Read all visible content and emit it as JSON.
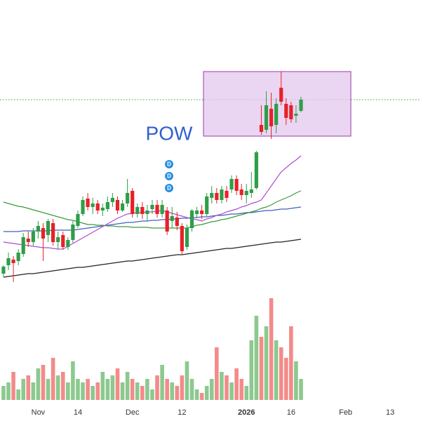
{
  "chart_data": {
    "type": "candlestick",
    "xlim": [
      -0.7,
      84.2
    ],
    "xticks": [
      {
        "value": 7,
        "label": "Nov"
      },
      {
        "value": 15,
        "label": "14"
      },
      {
        "value": 26,
        "label": "Dec"
      },
      {
        "value": 36,
        "label": "12"
      },
      {
        "value": 49,
        "label": "2026"
      },
      {
        "value": 58,
        "label": "16"
      },
      {
        "value": 69,
        "label": "Feb"
      },
      {
        "value": 78,
        "label": "13"
      }
    ],
    "ylim": [
      0,
      570
    ],
    "y2lim": [
      0,
      150
    ],
    "up_color": "#2e9e48",
    "down_color": "#e8202a",
    "open": [
      180,
      192,
      200,
      198,
      208,
      230,
      225,
      240,
      245,
      235,
      252,
      225,
      235,
      218,
      228,
      248,
      265,
      287,
      275,
      280,
      270,
      272,
      282,
      285,
      270,
      280,
      298,
      265,
      275,
      265,
      272,
      278,
      265,
      270,
      255,
      260,
      248,
      218,
      245,
      265,
      270,
      265,
      288,
      295,
      285,
      298,
      300,
      315,
      300,
      292,
      295,
      302,
      392,
      385,
      415,
      392,
      445,
      422,
      420,
      405,
      412
    ],
    "high": [
      192,
      210,
      205,
      215,
      238,
      240,
      245,
      255,
      252,
      258,
      258,
      240,
      240,
      232,
      255,
      270,
      290,
      295,
      288,
      285,
      280,
      290,
      295,
      290,
      285,
      315,
      302,
      280,
      282,
      278,
      285,
      285,
      285,
      275,
      275,
      268,
      252,
      250,
      272,
      275,
      278,
      295,
      305,
      302,
      305,
      305,
      320,
      320,
      308,
      308,
      325,
      355,
      420,
      440,
      438,
      430,
      468,
      430,
      425,
      420,
      432
    ],
    "low": [
      175,
      185,
      168,
      192,
      204,
      218,
      220,
      230,
      198,
      225,
      220,
      215,
      214,
      214,
      224,
      245,
      262,
      270,
      265,
      265,
      262,
      268,
      275,
      265,
      268,
      275,
      260,
      260,
      258,
      255,
      265,
      260,
      260,
      235,
      245,
      242,
      208,
      214,
      240,
      260,
      258,
      262,
      280,
      280,
      280,
      282,
      295,
      292,
      285,
      280,
      288,
      300,
      378,
      380,
      372,
      380,
      420,
      392,
      395,
      395,
      410
    ],
    "close": [
      190,
      202,
      195,
      210,
      232,
      225,
      240,
      248,
      230,
      255,
      225,
      232,
      218,
      228,
      250,
      265,
      285,
      275,
      280,
      270,
      274,
      282,
      288,
      270,
      280,
      295,
      265,
      275,
      265,
      270,
      278,
      265,
      278,
      240,
      262,
      248,
      212,
      245,
      270,
      270,
      265,
      290,
      295,
      285,
      300,
      288,
      315,
      298,
      292,
      298,
      300,
      353,
      382,
      420,
      390,
      422,
      425,
      402,
      400,
      408,
      428
    ],
    "volume": {
      "up_color": "#8cc98f",
      "down_color": "#f48a8a",
      "values": [
        20,
        25,
        40,
        15,
        30,
        35,
        25,
        45,
        50,
        30,
        60,
        35,
        40,
        25,
        55,
        30,
        25,
        30,
        20,
        25,
        40,
        30,
        35,
        45,
        25,
        40,
        30,
        25,
        20,
        30,
        15,
        35,
        50,
        30,
        25,
        20,
        35,
        55,
        30,
        15,
        10,
        20,
        30,
        75,
        40,
        35,
        25,
        45,
        30,
        20,
        85,
        120,
        90,
        105,
        145,
        85,
        75,
        60,
        105,
        55,
        30
      ]
    },
    "series": [
      {
        "color": "#222222",
        "values": [
          175,
          176,
          177,
          178,
          179,
          180,
          180,
          181,
          182,
          183,
          184,
          185,
          186,
          187,
          188,
          189,
          189,
          190,
          191,
          192,
          193,
          194,
          195,
          196,
          197,
          198,
          198,
          199,
          200,
          201,
          202,
          203,
          204,
          205,
          206,
          207,
          207,
          208,
          209,
          210,
          211,
          212,
          213,
          214,
          215,
          216,
          216,
          217,
          218,
          219,
          220,
          221,
          222,
          223,
          224,
          225,
          225,
          226,
          227,
          228,
          229
        ]
      },
      {
        "color": "#3f5fc0",
        "values": [
          240,
          240,
          240,
          240,
          241,
          241,
          241,
          241,
          241,
          241,
          242,
          242,
          242,
          242,
          242,
          243,
          244,
          245,
          246,
          247,
          248,
          249,
          250,
          251,
          252,
          253,
          253,
          254,
          255,
          255,
          256,
          256,
          257,
          257,
          258,
          258,
          259,
          259,
          260,
          260,
          261,
          261,
          262,
          263,
          263,
          264,
          265,
          265,
          266,
          267,
          267,
          268,
          269,
          270,
          270,
          271,
          272,
          272,
          273,
          274,
          275
        ]
      },
      {
        "color": "#3a9a3a",
        "values": [
          282,
          280,
          278,
          276,
          275,
          273,
          271,
          269,
          267,
          265,
          263,
          261,
          259,
          257,
          256,
          254,
          252,
          250,
          250,
          249,
          249,
          248,
          248,
          247,
          247,
          247,
          246,
          246,
          246,
          246,
          245,
          245,
          245,
          245,
          245,
          245,
          245,
          245,
          247,
          249,
          250,
          252,
          254,
          255,
          257,
          258,
          260,
          262,
          264,
          266,
          268,
          270,
          273,
          275,
          278,
          282,
          285,
          288,
          291,
          295,
          298
        ]
      },
      {
        "color": "#b04ad0",
        "values": [
          225,
          224,
          223,
          222,
          221,
          220,
          219,
          218,
          217,
          217,
          216,
          215,
          215,
          219,
          223,
          227,
          231,
          235,
          239,
          243,
          247,
          251,
          255,
          259,
          262,
          265,
          266,
          267,
          267,
          268,
          268,
          269,
          270,
          268,
          266,
          264,
          262,
          260,
          258,
          257,
          255,
          258,
          260,
          263,
          265,
          268,
          270,
          272,
          275,
          277,
          280,
          282,
          285,
          295,
          305,
          315,
          325,
          331,
          337,
          342,
          348
        ]
      }
    ],
    "annotation": "POW",
    "markers": [
      "D",
      "D",
      "D"
    ]
  }
}
